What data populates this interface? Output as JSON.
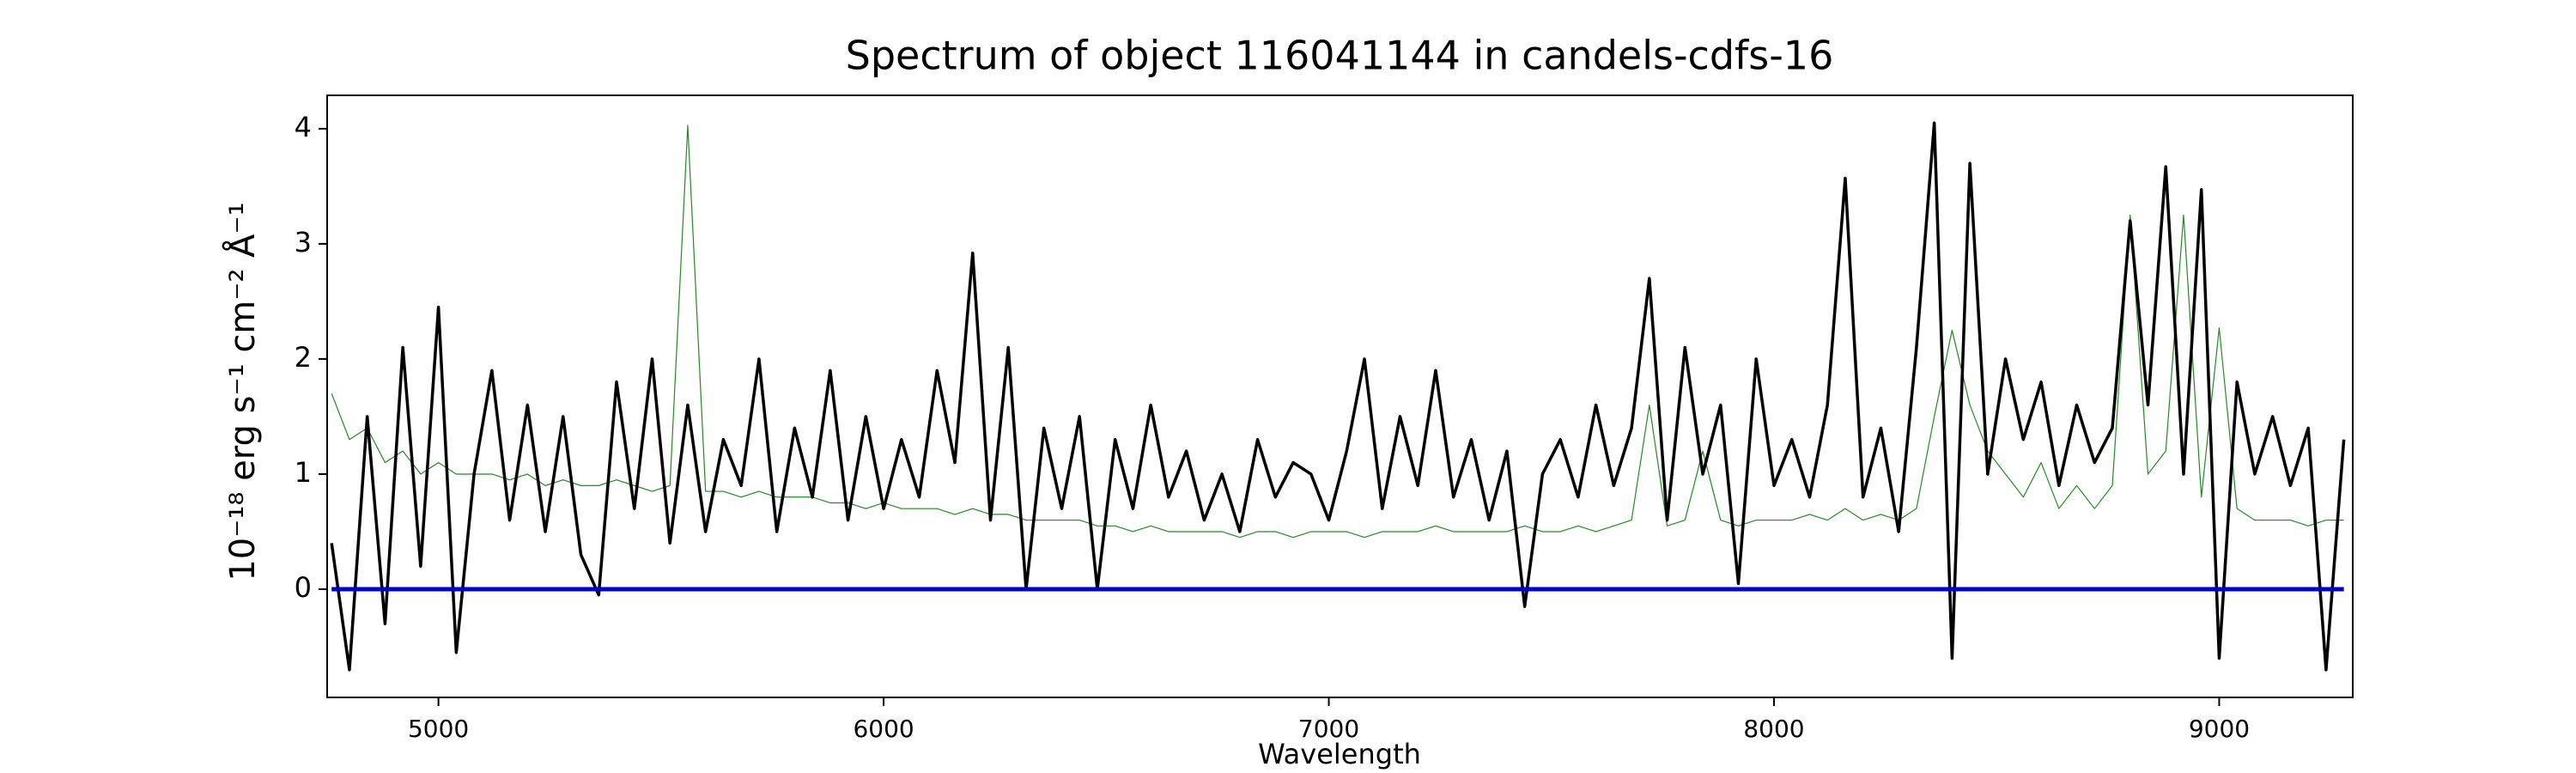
{
  "chart_data": {
    "type": "line",
    "title": "Spectrum of object 116041144 in candels-cdfs-16",
    "xlabel": "Wavelength",
    "ylabel": "10⁻¹⁸ erg s⁻¹ cm⁻² Å⁻¹",
    "x": [
      4760,
      4800,
      4840,
      4880,
      4920,
      4960,
      5000,
      5040,
      5080,
      5120,
      5160,
      5200,
      5240,
      5280,
      5320,
      5360,
      5400,
      5440,
      5480,
      5520,
      5560,
      5600,
      5640,
      5680,
      5720,
      5760,
      5800,
      5840,
      5880,
      5920,
      5960,
      6000,
      6040,
      6080,
      6120,
      6160,
      6200,
      6240,
      6280,
      6320,
      6360,
      6400,
      6440,
      6480,
      6520,
      6560,
      6600,
      6640,
      6680,
      6720,
      6760,
      6800,
      6840,
      6880,
      6920,
      6960,
      7000,
      7040,
      7080,
      7120,
      7160,
      7200,
      7240,
      7280,
      7320,
      7360,
      7400,
      7440,
      7480,
      7520,
      7560,
      7600,
      7640,
      7680,
      7720,
      7760,
      7800,
      7840,
      7880,
      7920,
      7960,
      8000,
      8040,
      8080,
      8120,
      8160,
      8200,
      8240,
      8280,
      8320,
      8360,
      8400,
      8440,
      8480,
      8520,
      8560,
      8600,
      8640,
      8680,
      8720,
      8760,
      8800,
      8840,
      8880,
      8920,
      8960,
      9000,
      9040,
      9080,
      9120,
      9160,
      9200,
      9240,
      9280
    ],
    "series": [
      {
        "color": "#228b22",
        "width": 1.2,
        "values": [
          1.7,
          1.3,
          1.4,
          1.1,
          1.2,
          1.0,
          1.1,
          1.0,
          1.0,
          1.0,
          0.95,
          1.0,
          0.9,
          0.95,
          0.9,
          0.9,
          0.95,
          0.9,
          0.85,
          0.9,
          4.03,
          0.85,
          0.85,
          0.8,
          0.85,
          0.8,
          0.8,
          0.8,
          0.75,
          0.75,
          0.7,
          0.75,
          0.7,
          0.7,
          0.7,
          0.65,
          0.7,
          0.65,
          0.65,
          0.6,
          0.6,
          0.6,
          0.6,
          0.55,
          0.55,
          0.5,
          0.55,
          0.5,
          0.5,
          0.5,
          0.5,
          0.45,
          0.5,
          0.5,
          0.45,
          0.5,
          0.5,
          0.5,
          0.45,
          0.5,
          0.5,
          0.5,
          0.55,
          0.5,
          0.5,
          0.5,
          0.5,
          0.55,
          0.5,
          0.5,
          0.55,
          0.5,
          0.55,
          0.6,
          1.6,
          0.55,
          0.6,
          1.2,
          0.6,
          0.55,
          0.6,
          0.6,
          0.6,
          0.65,
          0.6,
          0.7,
          0.6,
          0.65,
          0.6,
          0.7,
          1.5,
          2.25,
          1.6,
          1.2,
          1.0,
          0.8,
          1.1,
          0.7,
          0.9,
          0.7,
          0.9,
          3.25,
          1.0,
          1.2,
          3.25,
          0.8,
          2.27,
          0.7,
          0.6,
          0.6,
          0.6,
          0.55,
          0.6,
          0.6
        ]
      },
      {
        "color": "#000000",
        "width": 3.5,
        "values": [
          0.4,
          -0.7,
          1.5,
          -0.3,
          2.1,
          0.2,
          2.45,
          -0.55,
          1.0,
          1.9,
          0.6,
          1.6,
          0.5,
          1.5,
          0.3,
          -0.05,
          1.8,
          0.7,
          2.0,
          0.4,
          1.6,
          0.5,
          1.3,
          0.9,
          2.0,
          0.5,
          1.4,
          0.8,
          1.9,
          0.6,
          1.5,
          0.7,
          1.3,
          0.8,
          1.9,
          1.1,
          2.92,
          0.6,
          2.1,
          0.0,
          1.4,
          0.7,
          1.5,
          0.0,
          1.3,
          0.7,
          1.6,
          0.8,
          1.2,
          0.6,
          1.0,
          0.5,
          1.3,
          0.8,
          1.1,
          1.0,
          0.6,
          1.2,
          2.0,
          0.7,
          1.5,
          0.9,
          1.9,
          0.8,
          1.3,
          0.6,
          1.2,
          -0.15,
          1.0,
          1.3,
          0.8,
          1.6,
          0.9,
          1.4,
          2.7,
          0.6,
          2.1,
          1.0,
          1.6,
          0.05,
          2.0,
          0.9,
          1.3,
          0.8,
          1.6,
          3.57,
          0.8,
          1.4,
          0.5,
          2.1,
          4.05,
          -0.6,
          3.7,
          1.0,
          2.0,
          1.3,
          1.8,
          0.9,
          1.6,
          1.1,
          1.4,
          3.2,
          1.6,
          3.67,
          1.0,
          3.47,
          -0.6,
          1.8,
          1.0,
          1.5,
          0.9,
          1.4,
          -0.7,
          1.3
        ]
      },
      {
        "color": "#0000cd",
        "width": 5,
        "values": [
          0,
          0,
          0,
          0,
          0,
          0,
          0,
          0,
          0,
          0,
          0,
          0,
          0,
          0,
          0,
          0,
          0,
          0,
          0,
          0,
          0,
          0,
          0,
          0,
          0,
          0,
          0,
          0,
          0,
          0,
          0,
          0,
          0,
          0,
          0,
          0,
          0,
          0,
          0,
          0,
          0,
          0,
          0,
          0,
          0,
          0,
          0,
          0,
          0,
          0,
          0,
          0,
          0,
          0,
          0,
          0,
          0,
          0,
          0,
          0,
          0,
          0,
          0,
          0,
          0,
          0,
          0,
          0,
          0,
          0,
          0,
          0,
          0,
          0,
          0,
          0,
          0,
          0,
          0,
          0,
          0,
          0,
          0,
          0,
          0,
          0,
          0,
          0,
          0,
          0,
          0,
          0,
          0,
          0,
          0,
          0,
          0,
          0,
          0,
          0,
          0,
          0,
          0,
          0,
          0,
          0,
          0,
          0,
          0,
          0,
          0,
          0,
          0,
          0
        ]
      }
    ],
    "xlim": [
      4750,
      9300
    ],
    "ylim": [
      -0.94,
      4.29
    ],
    "xticks": [
      5000,
      6000,
      7000,
      8000,
      9000
    ],
    "yticks": [
      0,
      1,
      2,
      3,
      4
    ],
    "grid": false
  }
}
